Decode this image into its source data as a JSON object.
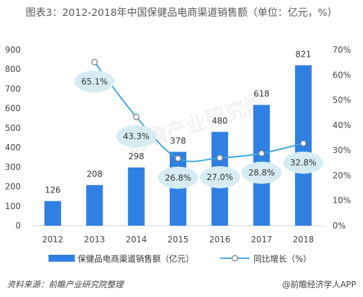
{
  "title": "图表3：2012-2018年中国保健品电商渠道销售额（单位：亿元，%）",
  "source": "资料来源：前瞻产业研究院整理",
  "brand": "@前瞻经济学人APP",
  "watermark": "前瞻产业研究院",
  "colors": {
    "bar": "#2f80e2",
    "line": "#3ba4dc",
    "bubble": "#d6ecf3",
    "axis": "#cfcfcf"
  },
  "chart_data": {
    "type": "bar",
    "categories": [
      "2012",
      "2013",
      "2014",
      "2015",
      "2016",
      "2017",
      "2018"
    ],
    "series": [
      {
        "name": "保健品电商渠道销售额（亿元）",
        "type": "bar",
        "axis": "left",
        "values": [
          126,
          208,
          298,
          378,
          480,
          618,
          821
        ],
        "labels": [
          "126",
          "208",
          "298",
          "378",
          "480",
          "618",
          "821"
        ]
      },
      {
        "name": "同比增长（%）",
        "type": "line",
        "axis": "right",
        "values": [
          null,
          65.1,
          43.3,
          26.8,
          27.0,
          28.8,
          32.8
        ],
        "labels": [
          "",
          "65.1%",
          "43.3%",
          "26.8%",
          "27.0%",
          "28.8%",
          "32.8%"
        ]
      }
    ],
    "y_left": {
      "min": 0,
      "max": 900,
      "step": 100,
      "ticks": [
        "0",
        "100",
        "200",
        "300",
        "400",
        "500",
        "600",
        "700",
        "800",
        "900"
      ]
    },
    "y_right": {
      "min": 0,
      "max": 70,
      "step": 10,
      "ticks": [
        "0%",
        "10%",
        "20%",
        "30%",
        "40%",
        "50%",
        "60%",
        "70%"
      ]
    },
    "grid": false,
    "legend_position": "bottom"
  }
}
